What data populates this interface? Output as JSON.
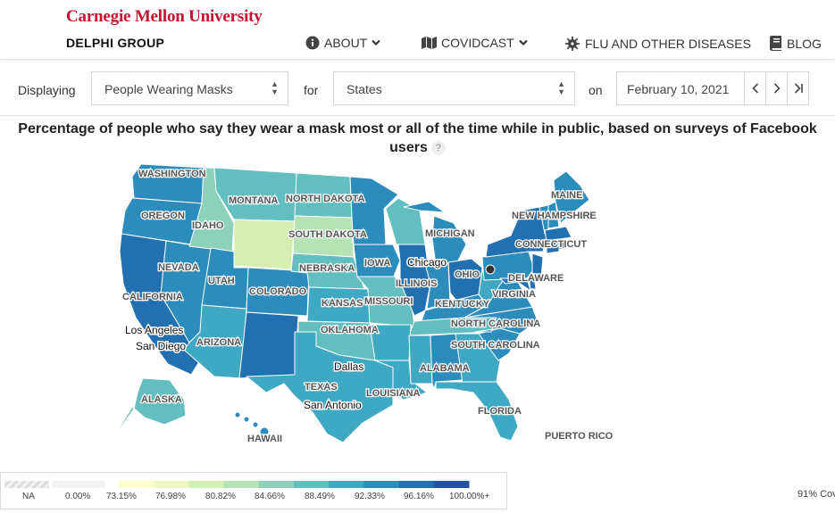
{
  "header": {
    "university": "Carnegie Mellon University",
    "group": "DELPHI GROUP",
    "nav": [
      {
        "label": "ABOUT",
        "icon": "info-icon",
        "dropdown": true
      },
      {
        "label": "COVIDCAST",
        "icon": "map-icon",
        "dropdown": true
      },
      {
        "label": "FLU AND OTHER DISEASES",
        "icon": "virus-icon",
        "dropdown": false
      },
      {
        "label": "BLOG",
        "icon": "book-icon",
        "dropdown": false
      }
    ]
  },
  "controls": {
    "displaying_label": "Displaying",
    "signal": "People Wearing Masks",
    "for_label": "for",
    "region": "States",
    "on_label": "on",
    "date": "February 10, 2021"
  },
  "title": "Percentage of people who say they wear a mask most or all of the time while in public, based on surveys of Facebook users",
  "help_glyph": "?",
  "map": {
    "state_labels": [
      "WASHINGTON",
      "OREGON",
      "IDAHO",
      "MONTANA",
      "NORTH DAKOTA",
      "SOUTH DAKOTA",
      "NEVADA",
      "CALIFORNIA",
      "UTAH",
      "COLORADO",
      "NEBRASKA",
      "KANSAS",
      "MISSOURI",
      "IOWA",
      "MICHIGAN",
      "ILLINOIS",
      "OHIO",
      "KENTUCKY",
      "NORTH CAROLINA",
      "SOUTH CAROLINA",
      "ARIZONA",
      "OKLAHOMA",
      "TEXAS",
      "LOUISIANA",
      "ALABAMA",
      "FLORIDA",
      "VIRGINIA",
      "DELAWARE",
      "CONNECTICUT",
      "NEW HAMPSHIRE",
      "MAINE",
      "ALASKA",
      "HAWAII",
      "PUERTO RICO"
    ],
    "city_labels": [
      "Chicago",
      "Los Angeles",
      "San Diego",
      "Dallas",
      "San Antonio"
    ]
  },
  "legend": {
    "labels": [
      "NA",
      "0.00%",
      "73.15%",
      "76.98%",
      "80.82%",
      "84.66%",
      "88.49%",
      "92.33%",
      "96.16%",
      "100.00%+"
    ],
    "colors": [
      "#ffffcc",
      "#edf8c0",
      "#d5efb3",
      "#b6e3b6",
      "#8ed1bb",
      "#62bebf",
      "#3fa8c2",
      "#2c8dbd",
      "#2370b0",
      "#22539f"
    ]
  },
  "coverage": "91% Cov",
  "colors": {
    "brand_red": "#c41230"
  }
}
